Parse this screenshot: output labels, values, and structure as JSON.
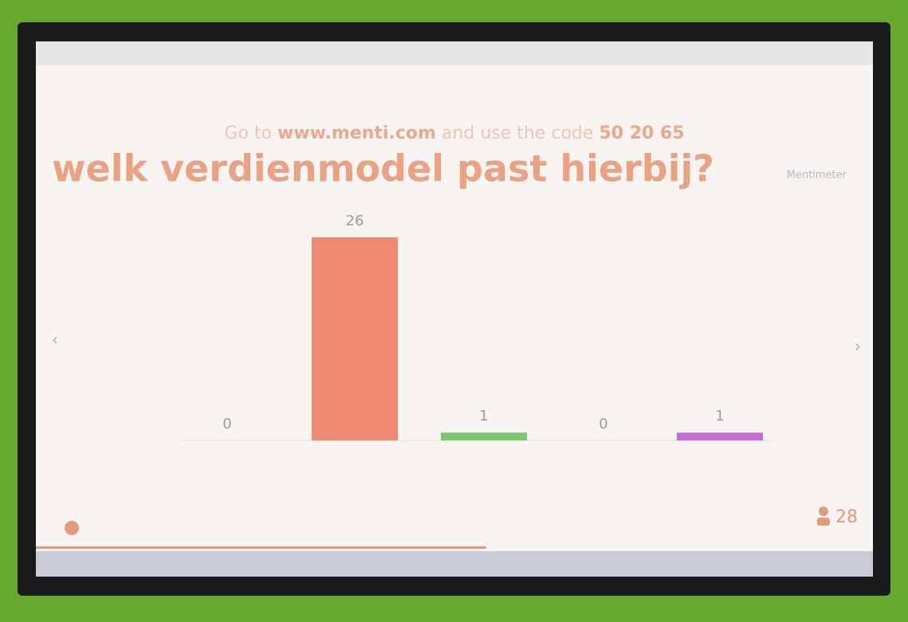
{
  "chart_data": {
    "type": "bar",
    "instruction": {
      "prefix": "Go to",
      "url": "www.menti.com",
      "middle": "and use the code",
      "code": "50 20 65"
    },
    "title": "welk verdienmodel past hierbij?",
    "brand": "Mentimeter",
    "categories": [
      null,
      null,
      null,
      null,
      null
    ],
    "values": [
      0,
      26,
      1,
      0,
      1
    ],
    "colors": [
      "#6f86d6",
      "#ef8a72",
      "#7bc86c",
      "#f2c94c",
      "#c66bd6"
    ],
    "participants": 28
  }
}
